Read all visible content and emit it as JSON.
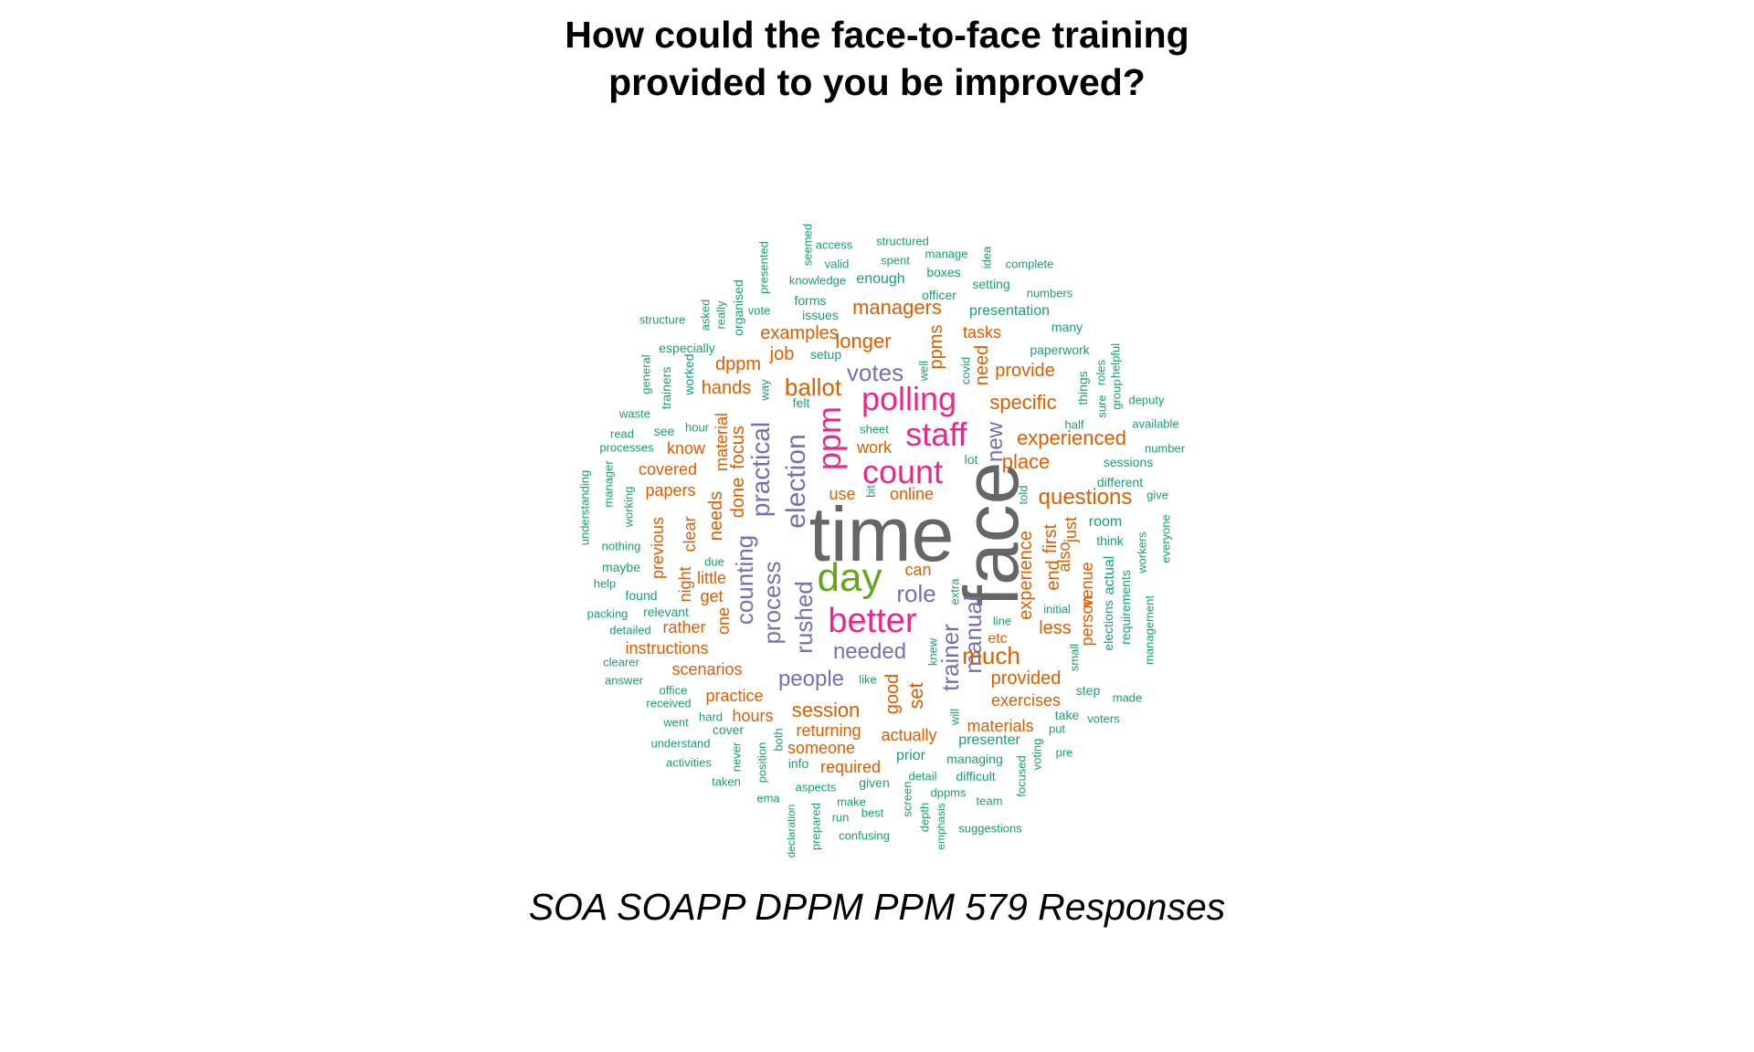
{
  "title": {
    "line1": "How could the face-to-face training",
    "line2": "provided to you be improved?"
  },
  "caption": "SOA SOAPP DPPM PPM 579 Responses",
  "colors": {
    "teal": "#1b9e77",
    "orange": "#d95f02",
    "purple": "#7570b3",
    "magenta": "#e7298a",
    "green": "#66a61e",
    "gray": "#666666"
  },
  "words": [
    {
      "text": "time",
      "color": "gray"
    },
    {
      "text": "face",
      "color": "gray"
    },
    {
      "text": "day",
      "color": "green"
    },
    {
      "text": "better",
      "color": "magenta"
    },
    {
      "text": "count",
      "color": "magenta"
    },
    {
      "text": "polling",
      "color": "magenta"
    },
    {
      "text": "staff",
      "color": "magenta"
    },
    {
      "text": "ppm",
      "color": "magenta"
    },
    {
      "text": "election",
      "color": "purple"
    },
    {
      "text": "practical",
      "color": "purple"
    },
    {
      "text": "counting",
      "color": "purple"
    },
    {
      "text": "process",
      "color": "purple"
    },
    {
      "text": "rushed",
      "color": "purple"
    },
    {
      "text": "trainer",
      "color": "purple"
    },
    {
      "text": "manual",
      "color": "purple"
    },
    {
      "text": "new",
      "color": "purple"
    },
    {
      "text": "votes",
      "color": "purple"
    },
    {
      "text": "role",
      "color": "purple"
    },
    {
      "text": "needed",
      "color": "purple"
    },
    {
      "text": "people",
      "color": "purple"
    },
    {
      "text": "ballot",
      "color": "orange"
    },
    {
      "text": "session",
      "color": "orange"
    },
    {
      "text": "much",
      "color": "orange"
    },
    {
      "text": "questions",
      "color": "orange"
    },
    {
      "text": "experienced",
      "color": "orange"
    },
    {
      "text": "place",
      "color": "orange"
    },
    {
      "text": "specific",
      "color": "orange"
    },
    {
      "text": "managers",
      "color": "orange"
    },
    {
      "text": "examples",
      "color": "orange"
    },
    {
      "text": "longer",
      "color": "orange"
    },
    {
      "text": "job",
      "color": "orange"
    },
    {
      "text": "dppm",
      "color": "orange"
    },
    {
      "text": "hands",
      "color": "orange"
    },
    {
      "text": "provide",
      "color": "orange"
    },
    {
      "text": "tasks",
      "color": "orange"
    },
    {
      "text": "ppms",
      "color": "orange"
    },
    {
      "text": "need",
      "color": "orange"
    },
    {
      "text": "experience",
      "color": "orange"
    },
    {
      "text": "end",
      "color": "orange"
    },
    {
      "text": "first",
      "color": "orange"
    },
    {
      "text": "also",
      "color": "orange"
    },
    {
      "text": "just",
      "color": "orange"
    },
    {
      "text": "less",
      "color": "orange"
    },
    {
      "text": "venue",
      "color": "orange"
    },
    {
      "text": "person",
      "color": "orange"
    },
    {
      "text": "provided",
      "color": "orange"
    },
    {
      "text": "exercises",
      "color": "orange"
    },
    {
      "text": "materials",
      "color": "orange"
    },
    {
      "text": "good",
      "color": "orange"
    },
    {
      "text": "set",
      "color": "orange"
    },
    {
      "text": "actually",
      "color": "orange"
    },
    {
      "text": "returning",
      "color": "orange"
    },
    {
      "text": "someone",
      "color": "orange"
    },
    {
      "text": "required",
      "color": "orange"
    },
    {
      "text": "hours",
      "color": "orange"
    },
    {
      "text": "practice",
      "color": "orange"
    },
    {
      "text": "scenarios",
      "color": "orange"
    },
    {
      "text": "instructions",
      "color": "orange"
    },
    {
      "text": "rather",
      "color": "orange"
    },
    {
      "text": "get",
      "color": "orange"
    },
    {
      "text": "little",
      "color": "orange"
    },
    {
      "text": "one",
      "color": "orange"
    },
    {
      "text": "night",
      "color": "orange"
    },
    {
      "text": "clear",
      "color": "orange"
    },
    {
      "text": "needs",
      "color": "orange"
    },
    {
      "text": "done",
      "color": "orange"
    },
    {
      "text": "focus",
      "color": "orange"
    },
    {
      "text": "material",
      "color": "orange"
    },
    {
      "text": "papers",
      "color": "orange"
    },
    {
      "text": "covered",
      "color": "orange"
    },
    {
      "text": "know",
      "color": "orange"
    },
    {
      "text": "previous",
      "color": "orange"
    },
    {
      "text": "work",
      "color": "orange"
    },
    {
      "text": "use",
      "color": "orange"
    },
    {
      "text": "online",
      "color": "orange"
    },
    {
      "text": "can",
      "color": "orange"
    },
    {
      "text": "etc",
      "color": "orange"
    },
    {
      "text": "structured",
      "color": "teal"
    },
    {
      "text": "access",
      "color": "teal"
    },
    {
      "text": "seemed",
      "color": "teal"
    },
    {
      "text": "valid",
      "color": "teal"
    },
    {
      "text": "spent",
      "color": "teal"
    },
    {
      "text": "manage",
      "color": "teal"
    },
    {
      "text": "idea",
      "color": "teal"
    },
    {
      "text": "complete",
      "color": "teal"
    },
    {
      "text": "presented",
      "color": "teal"
    },
    {
      "text": "knowledge",
      "color": "teal"
    },
    {
      "text": "enough",
      "color": "teal"
    },
    {
      "text": "boxes",
      "color": "teal"
    },
    {
      "text": "setting",
      "color": "teal"
    },
    {
      "text": "numbers",
      "color": "teal"
    },
    {
      "text": "organised",
      "color": "teal"
    },
    {
      "text": "vote",
      "color": "teal"
    },
    {
      "text": "forms",
      "color": "teal"
    },
    {
      "text": "officer",
      "color": "teal"
    },
    {
      "text": "issues",
      "color": "teal"
    },
    {
      "text": "presentation",
      "color": "teal"
    },
    {
      "text": "structure",
      "color": "teal"
    },
    {
      "text": "asked",
      "color": "teal"
    },
    {
      "text": "really",
      "color": "teal"
    },
    {
      "text": "many",
      "color": "teal"
    },
    {
      "text": "especially",
      "color": "teal"
    },
    {
      "text": "setup",
      "color": "teal"
    },
    {
      "text": "paperwork",
      "color": "teal"
    },
    {
      "text": "well",
      "color": "teal"
    },
    {
      "text": "covid",
      "color": "teal"
    },
    {
      "text": "general",
      "color": "teal"
    },
    {
      "text": "trainers",
      "color": "teal"
    },
    {
      "text": "worked",
      "color": "teal"
    },
    {
      "text": "way",
      "color": "teal"
    },
    {
      "text": "helpful",
      "color": "teal"
    },
    {
      "text": "roles",
      "color": "teal"
    },
    {
      "text": "things",
      "color": "teal"
    },
    {
      "text": "sure",
      "color": "teal"
    },
    {
      "text": "group",
      "color": "teal"
    },
    {
      "text": "waste",
      "color": "teal"
    },
    {
      "text": "felt",
      "color": "teal"
    },
    {
      "text": "deputy",
      "color": "teal"
    },
    {
      "text": "hour",
      "color": "teal"
    },
    {
      "text": "see",
      "color": "teal"
    },
    {
      "text": "read",
      "color": "teal"
    },
    {
      "text": "sheet",
      "color": "teal"
    },
    {
      "text": "half",
      "color": "teal"
    },
    {
      "text": "available",
      "color": "teal"
    },
    {
      "text": "processes",
      "color": "teal"
    },
    {
      "text": "lot",
      "color": "teal"
    },
    {
      "text": "number",
      "color": "teal"
    },
    {
      "text": "sessions",
      "color": "teal"
    },
    {
      "text": "understanding",
      "color": "teal"
    },
    {
      "text": "manager",
      "color": "teal"
    },
    {
      "text": "bit",
      "color": "teal"
    },
    {
      "text": "told",
      "color": "teal"
    },
    {
      "text": "different",
      "color": "teal"
    },
    {
      "text": "give",
      "color": "teal"
    },
    {
      "text": "working",
      "color": "teal"
    },
    {
      "text": "room",
      "color": "teal"
    },
    {
      "text": "everyone",
      "color": "teal"
    },
    {
      "text": "nothing",
      "color": "teal"
    },
    {
      "text": "think",
      "color": "teal"
    },
    {
      "text": "maybe",
      "color": "teal"
    },
    {
      "text": "due",
      "color": "teal"
    },
    {
      "text": "workers",
      "color": "teal"
    },
    {
      "text": "actual",
      "color": "teal"
    },
    {
      "text": "help",
      "color": "teal"
    },
    {
      "text": "requirements",
      "color": "teal"
    },
    {
      "text": "found",
      "color": "teal"
    },
    {
      "text": "extra",
      "color": "teal"
    },
    {
      "text": "initial",
      "color": "teal"
    },
    {
      "text": "elections",
      "color": "teal"
    },
    {
      "text": "management",
      "color": "teal"
    },
    {
      "text": "packing",
      "color": "teal"
    },
    {
      "text": "relevant",
      "color": "teal"
    },
    {
      "text": "line",
      "color": "teal"
    },
    {
      "text": "detailed",
      "color": "teal"
    },
    {
      "text": "small",
      "color": "teal"
    },
    {
      "text": "knew",
      "color": "teal"
    },
    {
      "text": "clearer",
      "color": "teal"
    },
    {
      "text": "like",
      "color": "teal"
    },
    {
      "text": "answer",
      "color": "teal"
    },
    {
      "text": "step",
      "color": "teal"
    },
    {
      "text": "office",
      "color": "teal"
    },
    {
      "text": "made",
      "color": "teal"
    },
    {
      "text": "received",
      "color": "teal"
    },
    {
      "text": "will",
      "color": "teal"
    },
    {
      "text": "take",
      "color": "teal"
    },
    {
      "text": "voters",
      "color": "teal"
    },
    {
      "text": "hard",
      "color": "teal"
    },
    {
      "text": "went",
      "color": "teal"
    },
    {
      "text": "cover",
      "color": "teal"
    },
    {
      "text": "both",
      "color": "teal"
    },
    {
      "text": "put",
      "color": "teal"
    },
    {
      "text": "presenter",
      "color": "teal"
    },
    {
      "text": "understand",
      "color": "teal"
    },
    {
      "text": "activities",
      "color": "teal"
    },
    {
      "text": "position",
      "color": "teal"
    },
    {
      "text": "info",
      "color": "teal"
    },
    {
      "text": "never",
      "color": "teal"
    },
    {
      "text": "prior",
      "color": "teal"
    },
    {
      "text": "managing",
      "color": "teal"
    },
    {
      "text": "voting",
      "color": "teal"
    },
    {
      "text": "pre",
      "color": "teal"
    },
    {
      "text": "taken",
      "color": "teal"
    },
    {
      "text": "detail",
      "color": "teal"
    },
    {
      "text": "difficult",
      "color": "teal"
    },
    {
      "text": "given",
      "color": "teal"
    },
    {
      "text": "aspects",
      "color": "teal"
    },
    {
      "text": "ema",
      "color": "teal"
    },
    {
      "text": "dppms",
      "color": "teal"
    },
    {
      "text": "focused",
      "color": "teal"
    },
    {
      "text": "make",
      "color": "teal"
    },
    {
      "text": "team",
      "color": "teal"
    },
    {
      "text": "screen",
      "color": "teal"
    },
    {
      "text": "run",
      "color": "teal"
    },
    {
      "text": "best",
      "color": "teal"
    },
    {
      "text": "depth",
      "color": "teal"
    },
    {
      "text": "declaration",
      "color": "teal"
    },
    {
      "text": "prepared",
      "color": "teal"
    },
    {
      "text": "emphasis",
      "color": "teal"
    },
    {
      "text": "suggestions",
      "color": "teal"
    },
    {
      "text": "confusing",
      "color": "teal"
    }
  ]
}
